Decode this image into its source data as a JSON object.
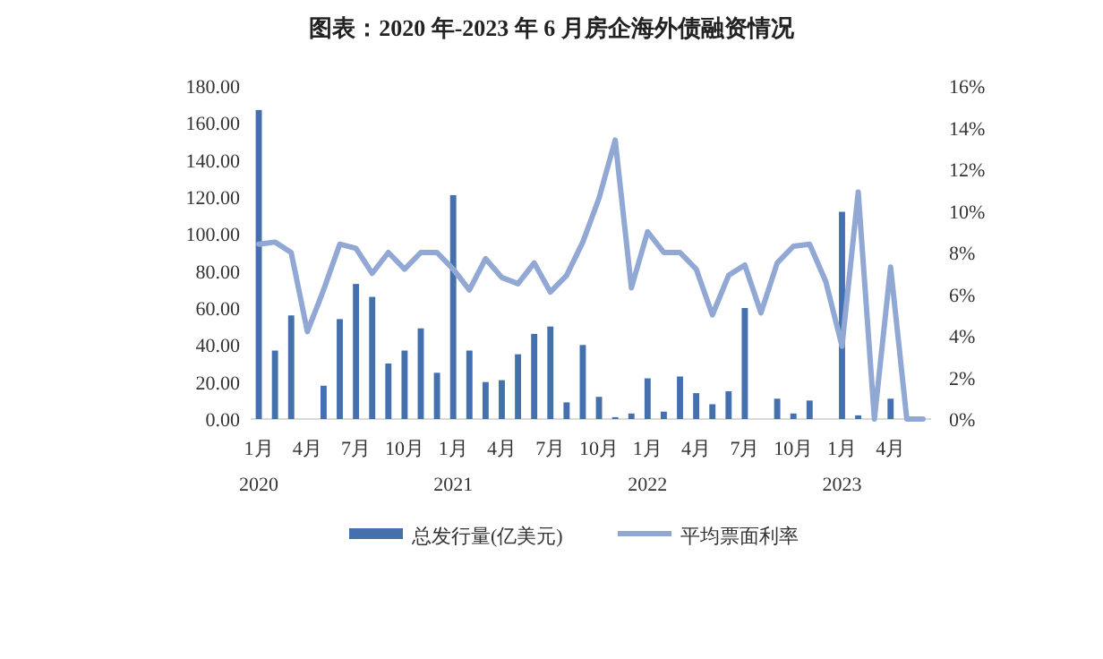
{
  "chart_data": {
    "type": "bar",
    "title": "图表：2020 年-2023 年 6 月房企海外债融资情况",
    "categories": [
      "1月\n2020",
      null,
      null,
      "4月",
      null,
      null,
      "7月",
      null,
      null,
      "10月",
      null,
      null,
      "1月\n2021",
      null,
      null,
      "4月",
      null,
      null,
      "7月",
      null,
      null,
      "10月",
      null,
      null,
      "1月\n2022",
      null,
      null,
      "4月",
      null,
      null,
      "7月",
      null,
      null,
      "10月",
      null,
      null,
      "1月\n2023",
      null,
      null,
      "4月",
      null,
      null
    ],
    "series": [
      {
        "name": "总发行量(亿美元)",
        "color": "#4470ad",
        "values": [
          167,
          37,
          56,
          0,
          18,
          54,
          73,
          66,
          30,
          37,
          49,
          25,
          121,
          37,
          20,
          21,
          35,
          46,
          50,
          9,
          40,
          12,
          1,
          3,
          22,
          4,
          23,
          14,
          8,
          15,
          60,
          0,
          11,
          3,
          10,
          0,
          112,
          2,
          0,
          11,
          0,
          0
        ]
      },
      {
        "name": "平均票面利率",
        "type": "line",
        "axis": "y2",
        "color": "#92a8d4",
        "values": [
          8.4,
          8.5,
          8.0,
          4.2,
          6.2,
          8.4,
          8.2,
          7.0,
          8.0,
          7.2,
          8.0,
          8.0,
          7.2,
          6.2,
          7.7,
          6.8,
          6.5,
          7.5,
          6.1,
          6.9,
          8.5,
          10.6,
          13.4,
          6.3,
          9.0,
          8.0,
          8.0,
          7.2,
          5.0,
          6.9,
          7.4,
          5.1,
          7.5,
          8.3,
          8.4,
          6.6,
          3.5,
          10.9,
          0,
          7.3,
          0,
          0
        ]
      }
    ],
    "ylim": [
      0,
      180
    ],
    "yticks": [
      {
        "value": 0,
        "label": "0.00"
      },
      {
        "value": 20,
        "label": "20.00"
      },
      {
        "value": 40,
        "label": "40.00"
      },
      {
        "value": 60,
        "label": "60.00"
      },
      {
        "value": 80,
        "label": "80.00"
      },
      {
        "value": 100,
        "label": "100.00"
      },
      {
        "value": 120,
        "label": "120.00"
      },
      {
        "value": 140,
        "label": "140.00"
      },
      {
        "value": 160,
        "label": "160.00"
      },
      {
        "value": 180,
        "label": "180.00"
      }
    ],
    "y2lim": [
      0,
      16
    ],
    "y2ticks": [
      {
        "value": 0,
        "label": "0%"
      },
      {
        "value": 2,
        "label": "2%"
      },
      {
        "value": 4,
        "label": "4%"
      },
      {
        "value": 6,
        "label": "6%"
      },
      {
        "value": 8,
        "label": "8%"
      },
      {
        "value": 10,
        "label": "10%"
      },
      {
        "value": 12,
        "label": "12%"
      },
      {
        "value": 14,
        "label": "14%"
      },
      {
        "value": 16,
        "label": "16%"
      }
    ],
    "legend": "bottom",
    "grid": false,
    "marker": "none",
    "line_style": "solid"
  }
}
